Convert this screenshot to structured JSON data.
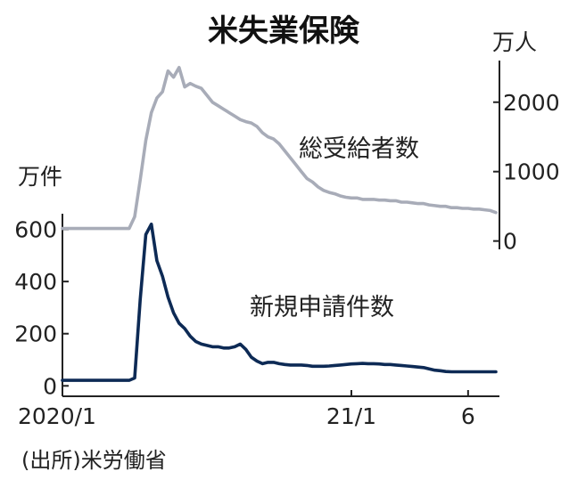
{
  "chart_data": {
    "type": "line",
    "title": "米失業保険",
    "left_axis": {
      "unit": "万件",
      "ticks": [
        0,
        200,
        400,
        600
      ],
      "range": [
        -40,
        660
      ]
    },
    "right_axis": {
      "unit": "万人",
      "ticks": [
        0,
        1000,
        2000
      ],
      "range": [
        -120,
        2600
      ]
    },
    "x_axis": {
      "range": [
        0,
        78
      ],
      "ticks": [
        {
          "label": "2020/1",
          "x": 0
        },
        {
          "label": "21/1",
          "x": 52
        },
        {
          "label": "6",
          "x": 73
        }
      ]
    },
    "series": [
      {
        "name": "総受給者数",
        "axis": "right",
        "color": "#a8acb8",
        "x": [
          0,
          1,
          2,
          3,
          4,
          5,
          6,
          7,
          8,
          9,
          10,
          11,
          12,
          13,
          14,
          15,
          16,
          17,
          18,
          19,
          20,
          21,
          22,
          23,
          24,
          25,
          26,
          27,
          28,
          29,
          30,
          31,
          32,
          33,
          34,
          35,
          36,
          37,
          38,
          39,
          40,
          41,
          42,
          43,
          44,
          45,
          46,
          47,
          48,
          49,
          50,
          51,
          52,
          53,
          54,
          55,
          56,
          57,
          58,
          59,
          60,
          61,
          62,
          63,
          64,
          65,
          66,
          67,
          68,
          69,
          70,
          71,
          72,
          73,
          74,
          75,
          76,
          77,
          78
        ],
        "y": [
          180,
          180,
          180,
          180,
          180,
          180,
          180,
          180,
          180,
          180,
          180,
          180,
          180,
          350,
          880,
          1450,
          1850,
          2060,
          2150,
          2450,
          2360,
          2500,
          2220,
          2270,
          2230,
          2200,
          2100,
          2000,
          1950,
          1900,
          1850,
          1800,
          1750,
          1720,
          1700,
          1650,
          1560,
          1500,
          1470,
          1400,
          1300,
          1200,
          1100,
          1000,
          900,
          850,
          780,
          730,
          700,
          680,
          650,
          630,
          620,
          620,
          600,
          600,
          600,
          590,
          590,
          580,
          580,
          560,
          560,
          550,
          540,
          540,
          520,
          510,
          500,
          500,
          480,
          480,
          470,
          470,
          460,
          460,
          450,
          440,
          410
        ],
        "label": "総受給者数"
      },
      {
        "name": "新規申請件数",
        "axis": "left",
        "color": "#0d2a55",
        "x": [
          0,
          1,
          2,
          3,
          4,
          5,
          6,
          7,
          8,
          9,
          10,
          11,
          12,
          13,
          14,
          15,
          16,
          17,
          18,
          19,
          20,
          21,
          22,
          23,
          24,
          25,
          26,
          27,
          28,
          29,
          30,
          31,
          32,
          33,
          34,
          35,
          36,
          37,
          38,
          39,
          40,
          41,
          42,
          43,
          44,
          45,
          46,
          47,
          48,
          49,
          50,
          51,
          52,
          53,
          54,
          55,
          56,
          57,
          58,
          59,
          60,
          61,
          62,
          63,
          64,
          65,
          66,
          67,
          68,
          69,
          70,
          71,
          72,
          73,
          74,
          75,
          76,
          77,
          78
        ],
        "y": [
          21,
          21,
          21,
          21,
          21,
          21,
          21,
          21,
          21,
          21,
          21,
          21,
          21,
          30,
          330,
          580,
          620,
          480,
          420,
          340,
          280,
          240,
          220,
          190,
          170,
          160,
          155,
          150,
          150,
          145,
          145,
          150,
          160,
          140,
          110,
          95,
          85,
          90,
          90,
          85,
          82,
          80,
          80,
          80,
          78,
          75,
          75,
          75,
          76,
          78,
          80,
          82,
          84,
          85,
          86,
          85,
          85,
          84,
          82,
          82,
          80,
          78,
          76,
          74,
          72,
          70,
          65,
          60,
          58,
          55,
          54,
          54,
          54,
          54,
          54,
          54,
          54,
          54,
          54
        ],
        "label": "新規申請件数"
      }
    ],
    "source": "(出所)米労働省"
  }
}
